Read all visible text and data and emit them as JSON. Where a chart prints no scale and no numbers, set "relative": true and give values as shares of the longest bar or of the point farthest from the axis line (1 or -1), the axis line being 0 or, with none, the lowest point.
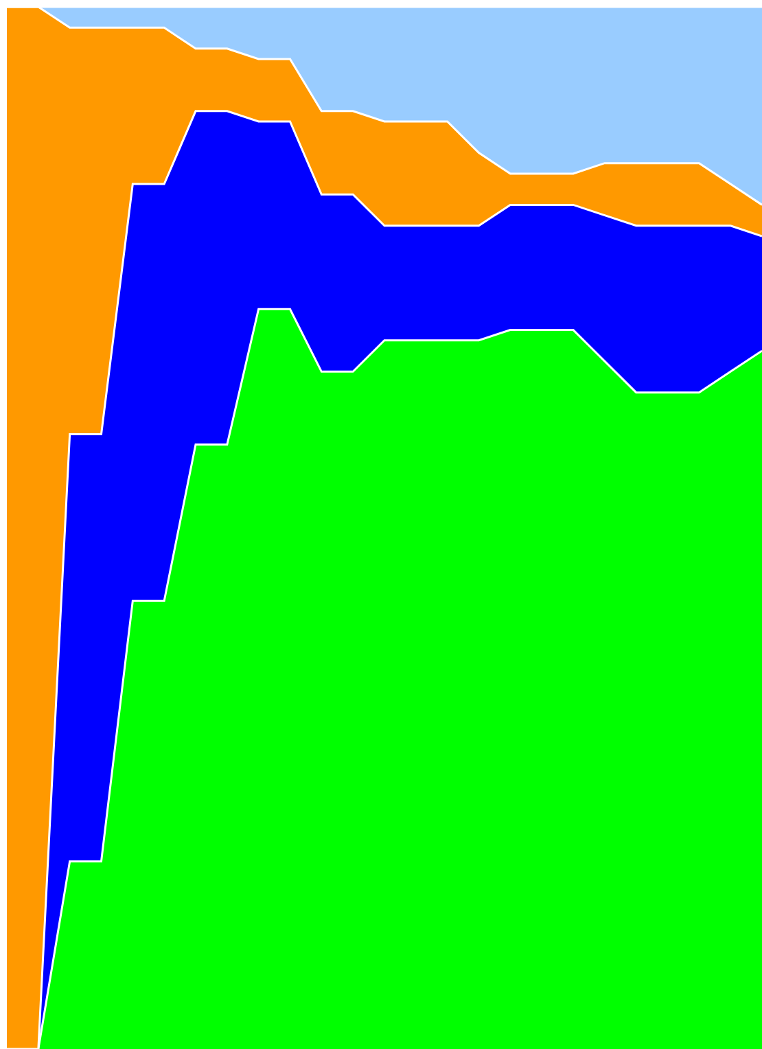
{
  "chart_data": {
    "type": "area",
    "relative": true,
    "stacked": true,
    "categories": [
      null,
      null,
      null,
      null,
      null,
      null,
      null,
      null,
      null,
      null,
      null,
      null,
      null,
      null,
      null,
      null,
      null,
      null,
      null,
      null,
      null,
      null,
      null,
      null,
      null
    ],
    "series": [
      {
        "color": "#00ff00",
        "values": [
          0,
          0,
          0.18,
          0.18,
          0.43,
          0.43,
          0.58,
          0.58,
          0.71,
          0.71,
          0.65,
          0.65,
          0.68,
          0.68,
          0.68,
          0.68,
          0.69,
          0.69,
          0.69,
          0.66,
          0.63,
          0.63,
          0.63,
          0.65,
          0.67
        ]
      },
      {
        "color": "#0000ff",
        "values": [
          0,
          0,
          0.41,
          0.41,
          0.4,
          0.4,
          0.32,
          0.32,
          0.18,
          0.18,
          0.17,
          0.17,
          0.11,
          0.11,
          0.11,
          0.11,
          0.12,
          0.12,
          0.12,
          0.14,
          0.16,
          0.16,
          0.16,
          0.14,
          0.11
        ]
      },
      {
        "color": "#ff9900",
        "values": [
          1,
          1,
          0.39,
          0.39,
          0.15,
          0.15,
          0.06,
          0.06,
          0.06,
          0.06,
          0.08,
          0.08,
          0.1,
          0.1,
          0.1,
          0.07,
          0.03,
          0.03,
          0.03,
          0.05,
          0.06,
          0.06,
          0.06,
          0.04,
          0.03
        ]
      },
      {
        "color": "#99ccff",
        "values": [
          0,
          0,
          0.02,
          0.02,
          0.02,
          0.02,
          0.04,
          0.04,
          0.05,
          0.05,
          0.1,
          0.1,
          0.11,
          0.11,
          0.11,
          0.14,
          0.16,
          0.16,
          0.16,
          0.15,
          0.15,
          0.15,
          0.15,
          0.17,
          0.19
        ]
      }
    ]
  }
}
